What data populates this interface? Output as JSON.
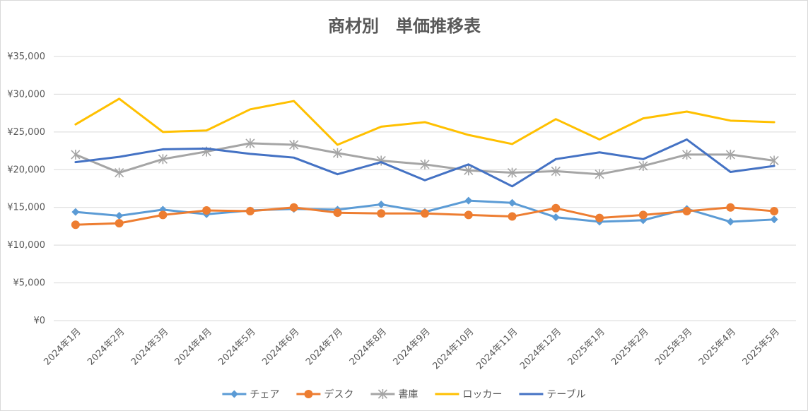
{
  "chart_data": {
    "type": "line",
    "title": "商材別　単価推移表",
    "xlabel": "",
    "ylabel": "",
    "ylim": [
      0,
      35000
    ],
    "grid": true,
    "legend_position": "bottom",
    "y_ticks": [
      "¥0",
      "¥5,000",
      "¥10,000",
      "¥15,000",
      "¥20,000",
      "¥25,000",
      "¥30,000",
      "¥35,000"
    ],
    "categories": [
      "2024年1月",
      "2024年2月",
      "2024年3月",
      "2024年4月",
      "2024年5月",
      "2024年6月",
      "2024年7月",
      "2024年8月",
      "2024年9月",
      "2024年10月",
      "2024年11月",
      "2024年12月",
      "2025年1月",
      "2025年2月",
      "2025年3月",
      "2025年4月",
      "2025年5月"
    ],
    "series": [
      {
        "name": "チェア",
        "color": "#5b9bd5",
        "marker": "diamond",
        "values": [
          14400,
          13900,
          14700,
          14100,
          14600,
          14800,
          14700,
          15400,
          14400,
          15900,
          15600,
          13700,
          13100,
          13300,
          14800,
          13100,
          13400
        ]
      },
      {
        "name": "デスク",
        "color": "#ed7d31",
        "marker": "circle",
        "values": [
          12700,
          12900,
          14000,
          14600,
          14500,
          15000,
          14300,
          14200,
          14200,
          14000,
          13800,
          14900,
          13600,
          14000,
          14500,
          15000,
          14500
        ]
      },
      {
        "name": "書庫",
        "color": "#a5a5a5",
        "marker": "star",
        "values": [
          22000,
          19600,
          21400,
          22400,
          23500,
          23300,
          22200,
          21200,
          20700,
          19900,
          19600,
          19800,
          19400,
          20500,
          22000,
          22000,
          21200
        ]
      },
      {
        "name": "ロッカー",
        "color": "#ffc000",
        "marker": "none",
        "values": [
          26000,
          29400,
          25000,
          25200,
          28000,
          29100,
          23300,
          25700,
          26300,
          24600,
          23400,
          26700,
          24000,
          26800,
          27700,
          26500,
          26300
        ]
      },
      {
        "name": "テーブル",
        "color": "#4472c4",
        "marker": "none",
        "values": [
          21000,
          21700,
          22700,
          22800,
          22100,
          21600,
          19400,
          21000,
          18600,
          20700,
          17800,
          21400,
          22300,
          21400,
          24000,
          19700,
          20500
        ]
      }
    ]
  }
}
